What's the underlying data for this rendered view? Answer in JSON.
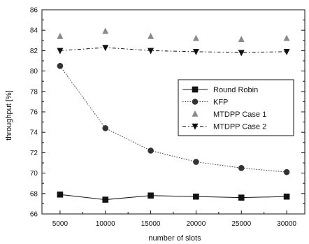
{
  "chart_data": {
    "type": "line",
    "xlabel": "number of slots",
    "ylabel": "throughput [%]",
    "x": [
      5000,
      10000,
      15000,
      20000,
      25000,
      30000
    ],
    "xlim": [
      3000,
      32000
    ],
    "ylim": [
      66,
      86
    ],
    "xticks": [
      5000,
      10000,
      15000,
      20000,
      25000,
      30000
    ],
    "yticks": [
      66,
      68,
      70,
      72,
      74,
      76,
      78,
      80,
      82,
      84,
      86
    ],
    "grid": false,
    "legend_position": "right",
    "series": [
      {
        "name": "Round Robin",
        "marker": "square",
        "line": "solid",
        "color": "#111111",
        "values": [
          67.9,
          67.4,
          67.8,
          67.7,
          67.6,
          67.7
        ]
      },
      {
        "name": "KFP",
        "marker": "circle",
        "line": "dotted",
        "color": "#333333",
        "values": [
          80.5,
          74.4,
          72.2,
          71.1,
          70.5,
          70.1
        ]
      },
      {
        "name": "MTDPP Case 1",
        "marker": "triangle-up",
        "line": "none",
        "color": "#8a8a8a",
        "values": [
          83.4,
          83.9,
          83.4,
          83.2,
          83.1,
          83.2
        ]
      },
      {
        "name": "MTDPP Case 2",
        "marker": "triangle-down",
        "line": "dashdot",
        "color": "#111111",
        "values": [
          82.0,
          82.3,
          82.0,
          81.9,
          81.8,
          81.9
        ]
      }
    ]
  }
}
